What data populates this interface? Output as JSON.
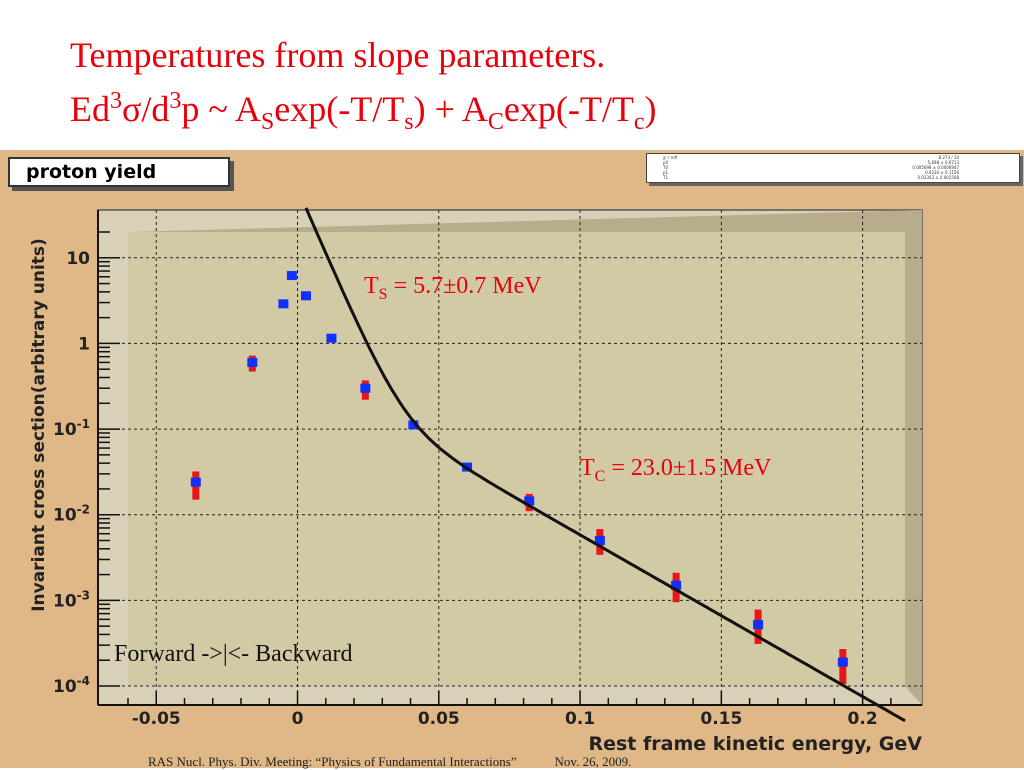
{
  "slide": {
    "title_line1": "Temperatures from slope parameters.",
    "title_line2": {
      "p1": "Ed",
      "p2": "3",
      "p3": "σ/d",
      "p4": "3",
      "p5": "p ~ A",
      "p6": "S",
      "p7": "exp(-T/T",
      "p8": "s",
      "p9": ") + A",
      "p10": "C",
      "p11": "exp(-T/T",
      "p12": "c",
      "p13": ")"
    },
    "footer_left": "RAS Nucl. Phys. Div. Meeting: “Physics of Fundamental Interactions”",
    "footer_right": "Nov. 26, 2009."
  },
  "histogram_title": "proton yield",
  "stats_box": {
    "rows": [
      {
        "k": "χ² / ndf",
        "v": "8.273 / 10"
      },
      {
        "k": "p0",
        "v": "5.698 ± 0.6713"
      },
      {
        "k": "T0",
        "v": "0.005698 ± 0.0006947"
      },
      {
        "k": "p1",
        "v": "0.4234 ± 0.1156"
      },
      {
        "k": "T1",
        "v": "0.02303 ± 0.001508"
      }
    ]
  },
  "colors": {
    "title": "#e8000b",
    "panel": "#e0b888",
    "frame": "#d9d0b8",
    "plot_area": "#d2c9a5",
    "marker": "#1030ff",
    "error_bar": "#e8151b",
    "fit_curve": "#111111",
    "annotation": "#e8000b"
  },
  "chart_data": {
    "type": "scatter",
    "title": "proton yield",
    "xlabel": "Rest frame kinetic energy, GeV",
    "ylabel": "Invariant cross section(arbitrary units)",
    "xlim": [
      -0.06,
      0.215
    ],
    "ylim": [
      0.0001,
      20
    ],
    "y_scale": "log",
    "grid": true,
    "x_ticks": [
      -0.05,
      0,
      0.05,
      0.1,
      0.15,
      0.2
    ],
    "x_tick_labels": [
      "-0.05",
      "0",
      "0.05",
      "0.1",
      "0.15",
      "0.2"
    ],
    "y_ticks": [
      {
        "v": 10,
        "base": "10",
        "exp": ""
      },
      {
        "v": 1,
        "base": "1",
        "exp": ""
      },
      {
        "v": 0.1,
        "base": "10",
        "exp": "-1"
      },
      {
        "v": 0.01,
        "base": "10",
        "exp": "-2"
      },
      {
        "v": 0.001,
        "base": "10",
        "exp": "-3"
      },
      {
        "v": 0.0001,
        "base": "10",
        "exp": "-4"
      }
    ],
    "points": [
      {
        "x": -0.036,
        "y": 0.024,
        "lo": 0.015,
        "hi": 0.032
      },
      {
        "x": -0.016,
        "y": 0.6,
        "lo": 0.47,
        "hi": 0.72
      },
      {
        "x": -0.005,
        "y": 2.9,
        "lo": 2.9,
        "hi": 2.9
      },
      {
        "x": -0.002,
        "y": 6.2,
        "lo": 6.2,
        "hi": 6.2
      },
      {
        "x": 0.003,
        "y": 3.6,
        "lo": 3.6,
        "hi": 3.6
      },
      {
        "x": 0.012,
        "y": 1.15,
        "lo": 1.15,
        "hi": 1.15
      },
      {
        "x": 0.024,
        "y": 0.3,
        "lo": 0.22,
        "hi": 0.37
      },
      {
        "x": 0.041,
        "y": 0.112,
        "lo": 0.112,
        "hi": 0.112
      },
      {
        "x": 0.06,
        "y": 0.036,
        "lo": 0.036,
        "hi": 0.036
      },
      {
        "x": 0.082,
        "y": 0.0145,
        "lo": 0.011,
        "hi": 0.0175
      },
      {
        "x": 0.107,
        "y": 0.005,
        "lo": 0.0034,
        "hi": 0.0068
      },
      {
        "x": 0.134,
        "y": 0.0015,
        "lo": 0.00095,
        "hi": 0.0021
      },
      {
        "x": 0.163,
        "y": 0.00052,
        "lo": 0.00031,
        "hi": 0.00078
      },
      {
        "x": 0.193,
        "y": 0.00019,
        "lo": 0.000105,
        "hi": 0.00027
      }
    ],
    "fit": {
      "As": 64,
      "Ts_GeV": 0.0057,
      "Ac": 0.45,
      "Tc_GeV": 0.023,
      "x_start": 0.003,
      "x_end": 0.215
    },
    "annotations": {
      "ts": {
        "a": "T",
        "b": "S",
        "c": " = 5.7±0.7 MeV"
      },
      "tc": {
        "a": "T",
        "b": "C",
        "c": " = 23.0±1.5 MeV"
      },
      "direction": "Forward  ->|<- Backward"
    }
  }
}
